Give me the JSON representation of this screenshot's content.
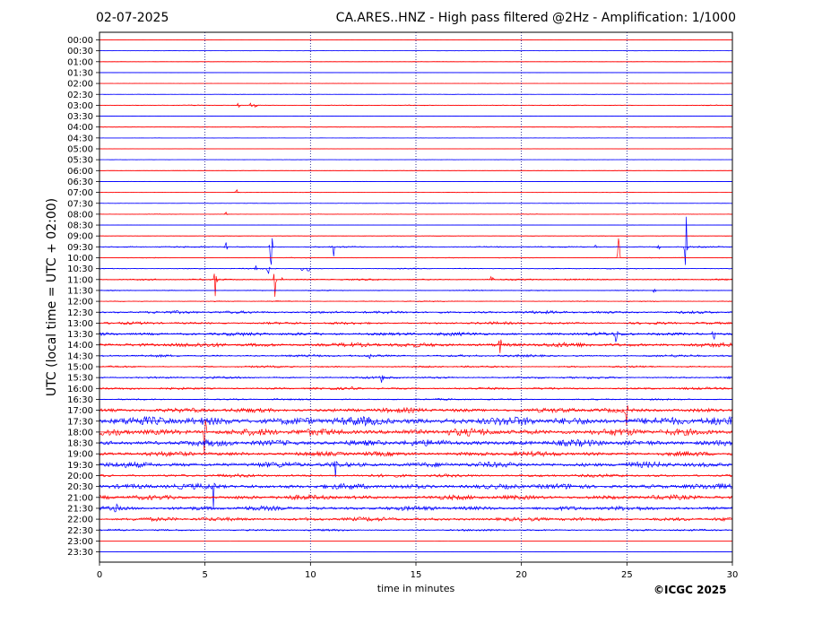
{
  "header": {
    "date": "02-07-2025",
    "title": "CA.ARES..HNZ - High pass filtered @2Hz - Amplification: 1/1000"
  },
  "footer": {
    "copyright": "©ICGC 2025"
  },
  "chart_data": {
    "type": "line",
    "title": "CA.ARES..HNZ - High pass filtered @2Hz - Amplification: 1/1000",
    "xlabel": "time in minutes",
    "ylabel": "UTC (local time = UTC + 02:00)",
    "xlim": [
      0,
      30
    ],
    "x_ticks": [
      0,
      5,
      10,
      15,
      20,
      25,
      30
    ],
    "grid": "vertical dotted at 5-minute intervals",
    "colors": {
      "even_rows": "#ff0000",
      "odd_rows": "#0000ff",
      "grid": "#000080"
    },
    "rows": [
      {
        "label": "00:00",
        "activity": 0.02,
        "events": []
      },
      {
        "label": "00:30",
        "activity": 0.02,
        "events": []
      },
      {
        "label": "01:00",
        "activity": 0.02,
        "events": []
      },
      {
        "label": "01:30",
        "activity": 0.02,
        "events": []
      },
      {
        "label": "02:00",
        "activity": 0.02,
        "events": []
      },
      {
        "label": "02:30",
        "activity": 0.02,
        "events": []
      },
      {
        "label": "03:00",
        "activity": 0.05,
        "events": [
          {
            "t": 6.6,
            "amp": 0.1
          },
          {
            "t": 7.2,
            "amp": 0.12
          },
          {
            "t": 7.4,
            "amp": 0.1
          }
        ]
      },
      {
        "label": "03:30",
        "activity": 0.02,
        "events": []
      },
      {
        "label": "04:00",
        "activity": 0.03,
        "events": []
      },
      {
        "label": "04:30",
        "activity": 0.02,
        "events": []
      },
      {
        "label": "05:00",
        "activity": 0.02,
        "events": []
      },
      {
        "label": "05:30",
        "activity": 0.02,
        "events": []
      },
      {
        "label": "06:00",
        "activity": 0.02,
        "events": []
      },
      {
        "label": "06:30",
        "activity": 0.02,
        "events": []
      },
      {
        "label": "07:00",
        "activity": 0.03,
        "events": [
          {
            "t": 6.5,
            "amp": 0.12
          }
        ]
      },
      {
        "label": "07:30",
        "activity": 0.02,
        "events": []
      },
      {
        "label": "08:00",
        "activity": 0.03,
        "events": [
          {
            "t": 6.0,
            "amp": 0.08
          }
        ]
      },
      {
        "label": "08:30",
        "activity": 0.02,
        "events": []
      },
      {
        "label": "09:00",
        "activity": 0.03,
        "events": []
      },
      {
        "label": "09:30",
        "activity": 0.08,
        "events": [
          {
            "t": 6.0,
            "amp": 0.25
          },
          {
            "t": 8.15,
            "amp": 1.2
          },
          {
            "t": 11.1,
            "amp": 0.5
          },
          {
            "t": 23.5,
            "amp": 0.1
          },
          {
            "t": 26.5,
            "amp": 0.1
          },
          {
            "t": 27.8,
            "amp": 0.9
          }
        ]
      },
      {
        "label": "10:00",
        "activity": 0.05,
        "events": [
          {
            "t": 24.6,
            "amp": 0.85
          }
        ]
      },
      {
        "label": "10:30",
        "activity": 0.06,
        "events": [
          {
            "t": 7.4,
            "amp": 0.2
          },
          {
            "t": 8.0,
            "amp": 0.3
          },
          {
            "t": 9.6,
            "amp": 0.15
          },
          {
            "t": 9.9,
            "amp": 0.15
          }
        ]
      },
      {
        "label": "11:00",
        "activity": 0.1,
        "events": [
          {
            "t": 5.5,
            "amp": 0.55
          },
          {
            "t": 8.3,
            "amp": 0.6
          },
          {
            "t": 8.7,
            "amp": 0.25
          },
          {
            "t": 18.6,
            "amp": 0.2
          }
        ]
      },
      {
        "label": "11:30",
        "activity": 0.06,
        "events": [
          {
            "t": 26.3,
            "amp": 0.1
          }
        ]
      },
      {
        "label": "12:00",
        "activity": 0.06,
        "events": []
      },
      {
        "label": "12:30",
        "activity": 0.18,
        "events": []
      },
      {
        "label": "13:00",
        "activity": 0.16,
        "events": []
      },
      {
        "label": "13:30",
        "activity": 0.22,
        "events": [
          {
            "t": 24.5,
            "amp": 0.3
          },
          {
            "t": 29.1,
            "amp": 0.35
          }
        ]
      },
      {
        "label": "14:00",
        "activity": 0.28,
        "events": [
          {
            "t": 19.0,
            "amp": 0.3
          }
        ]
      },
      {
        "label": "14:30",
        "activity": 0.15,
        "events": [
          {
            "t": 12.8,
            "amp": 0.2
          }
        ]
      },
      {
        "label": "15:00",
        "activity": 0.12,
        "events": []
      },
      {
        "label": "15:30",
        "activity": 0.14,
        "events": [
          {
            "t": 13.4,
            "amp": 0.2
          }
        ]
      },
      {
        "label": "16:00",
        "activity": 0.14,
        "events": [
          {
            "t": 12.0,
            "amp": 0.15
          }
        ]
      },
      {
        "label": "16:30",
        "activity": 0.1,
        "events": []
      },
      {
        "label": "17:00",
        "activity": 0.3,
        "events": [
          {
            "t": 25.0,
            "amp": 0.6
          }
        ]
      },
      {
        "label": "17:30",
        "activity": 0.55,
        "events": []
      },
      {
        "label": "18:00",
        "activity": 0.45,
        "events": [
          {
            "t": 5.0,
            "amp": 0.8
          }
        ]
      },
      {
        "label": "18:30",
        "activity": 0.4,
        "events": []
      },
      {
        "label": "19:00",
        "activity": 0.3,
        "events": []
      },
      {
        "label": "19:30",
        "activity": 0.35,
        "events": [
          {
            "t": 11.2,
            "amp": 0.4
          }
        ]
      },
      {
        "label": "20:00",
        "activity": 0.2,
        "events": []
      },
      {
        "label": "20:30",
        "activity": 0.35,
        "events": [
          {
            "t": 5.4,
            "amp": 0.7
          }
        ]
      },
      {
        "label": "21:00",
        "activity": 0.3,
        "events": []
      },
      {
        "label": "21:30",
        "activity": 0.28,
        "events": [
          {
            "t": 0.8,
            "amp": 0.4
          }
        ]
      },
      {
        "label": "22:00",
        "activity": 0.25,
        "events": []
      },
      {
        "label": "22:30",
        "activity": 0.12,
        "events": []
      },
      {
        "label": "23:00",
        "activity": 0.01,
        "events": []
      },
      {
        "label": "23:30",
        "activity": 0.01,
        "events": []
      }
    ]
  }
}
